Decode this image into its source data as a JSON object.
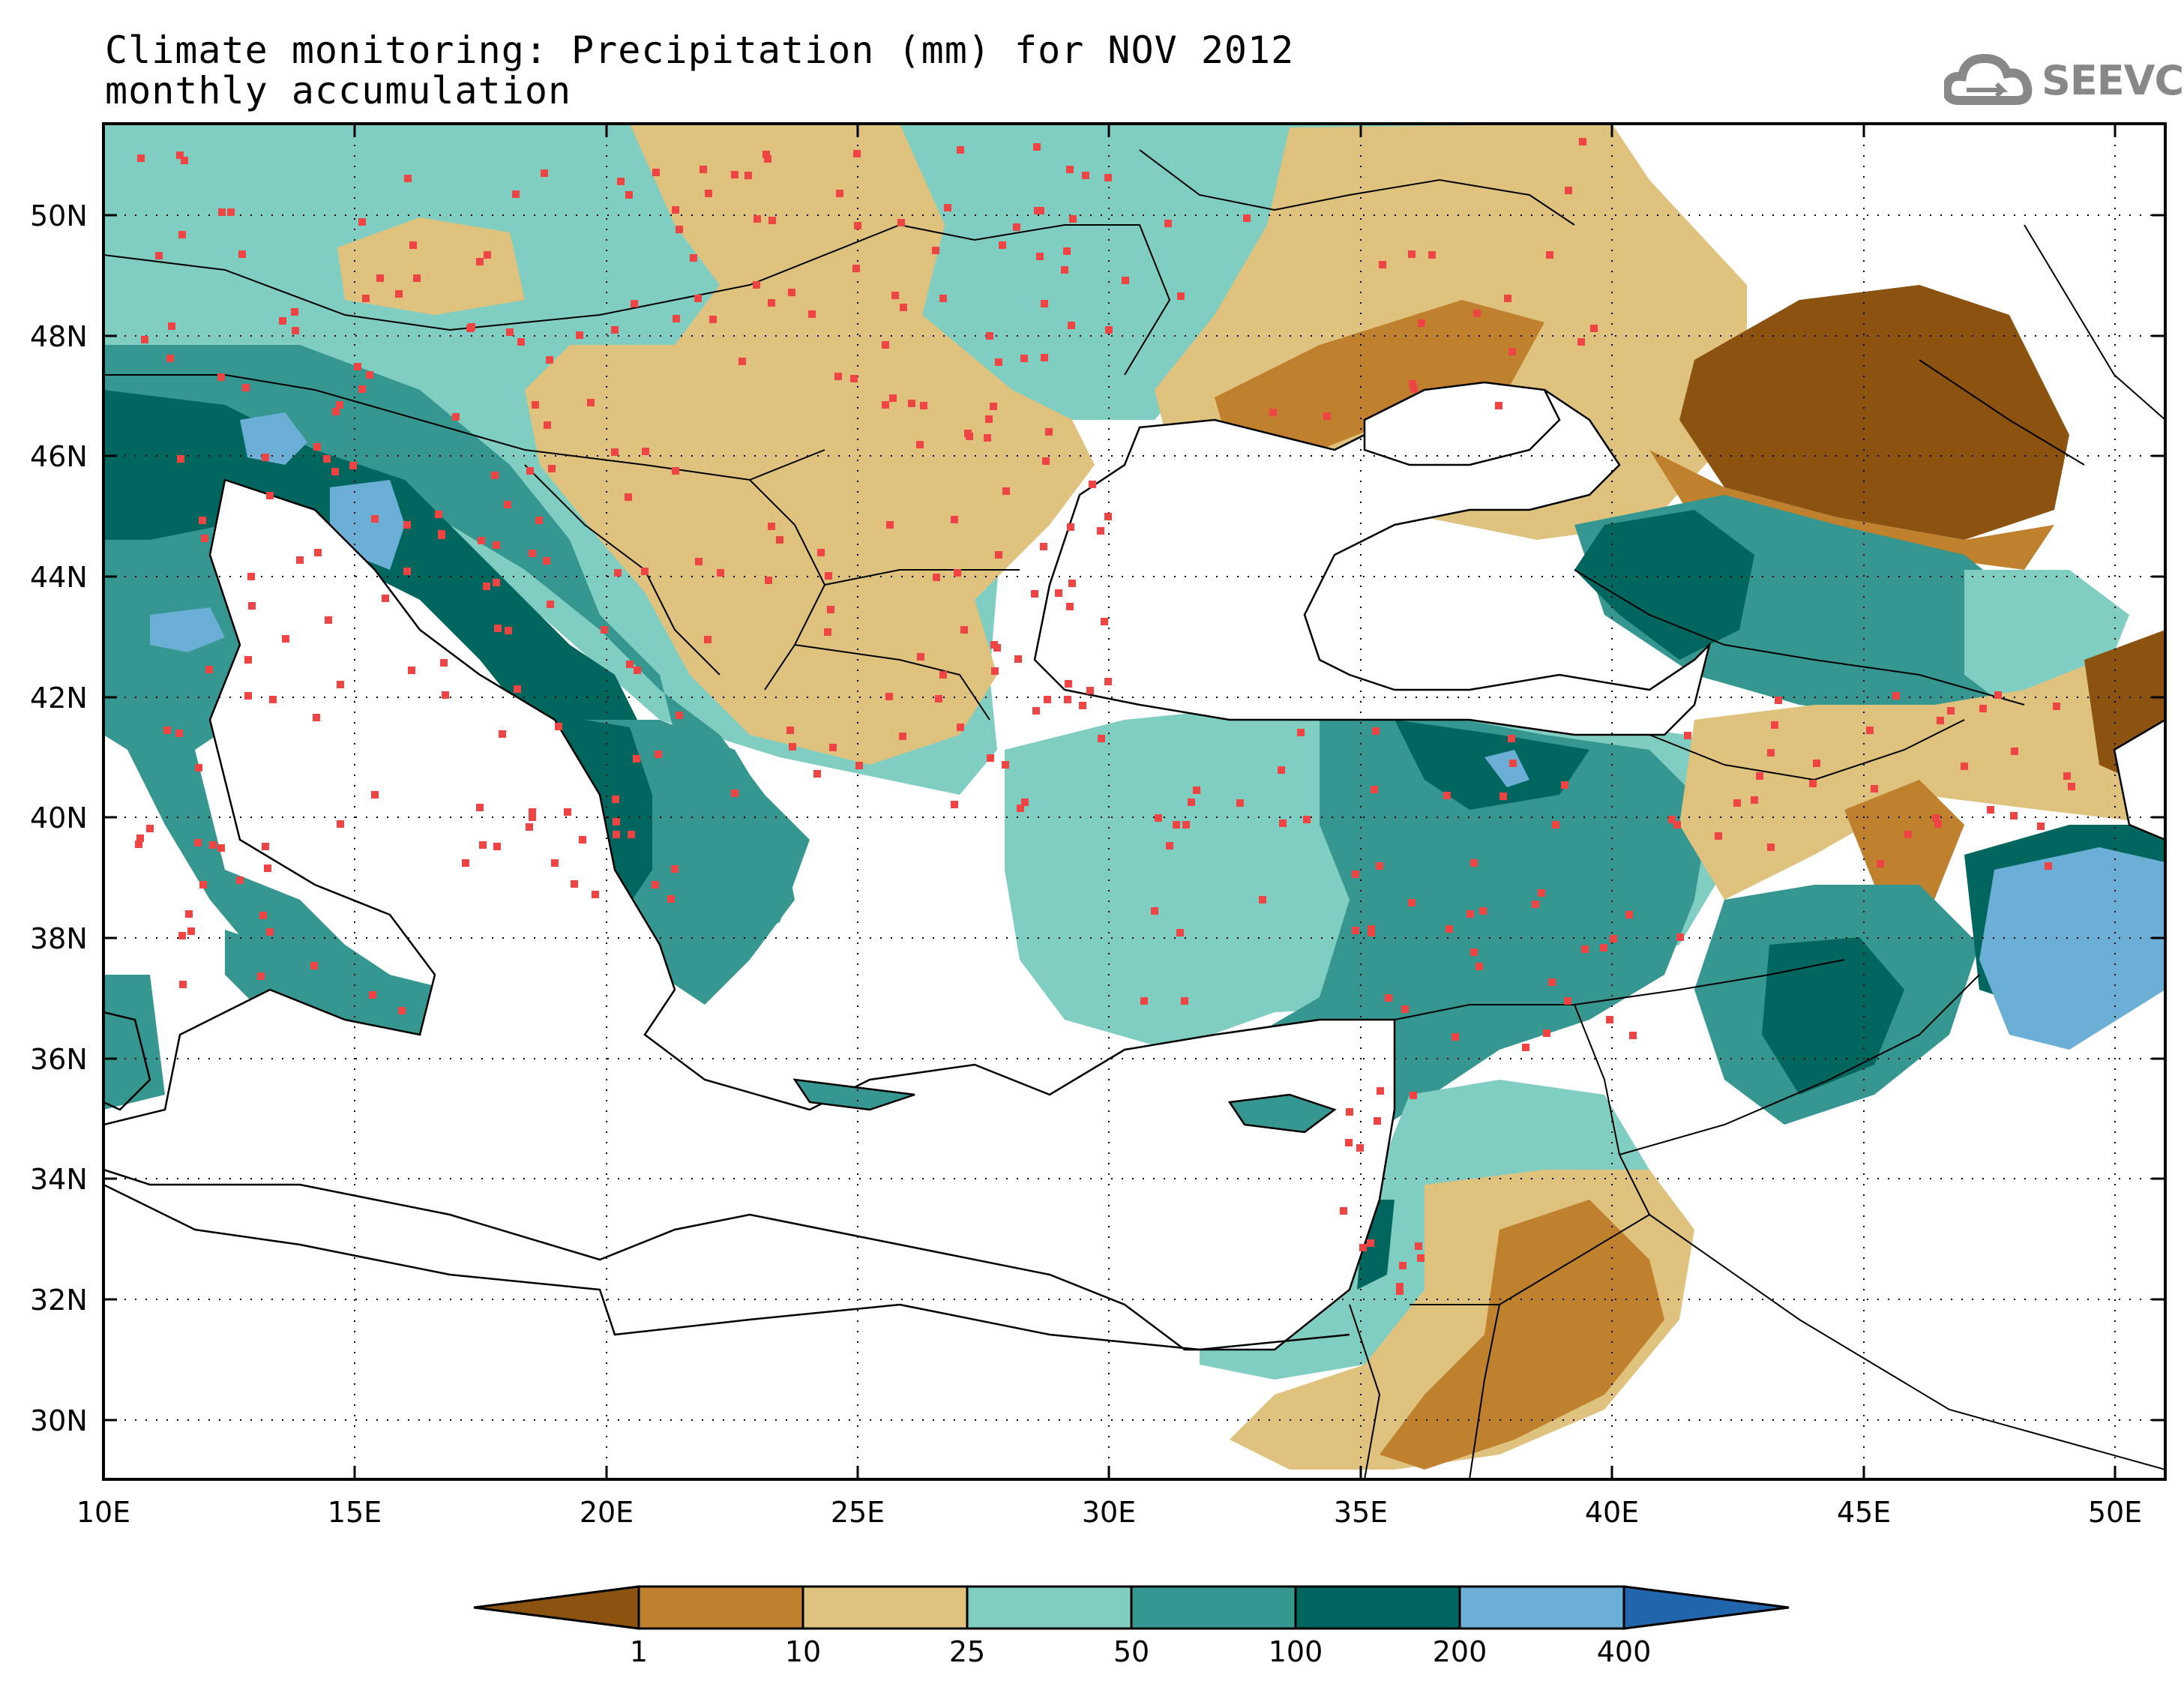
{
  "title": {
    "line1": "Climate monitoring: Precipitation (mm) for NOV 2012",
    "line2": "monthly accumulation"
  },
  "logo": {
    "text": "SEEVCCC",
    "icon": "cloud-icon"
  },
  "map": {
    "lon_range": [
      10,
      51
    ],
    "lat_range": [
      29,
      51.5
    ],
    "y_ticks": [
      "50N",
      "48N",
      "46N",
      "44N",
      "42N",
      "40N",
      "38N",
      "36N",
      "34N",
      "32N",
      "30N"
    ],
    "x_ticks": [
      "10E",
      "15E",
      "20E",
      "25E",
      "30E",
      "35E",
      "40E",
      "45E",
      "50E"
    ],
    "grid": "dotted"
  },
  "colorbar": {
    "labels": [
      "1",
      "10",
      "25",
      "50",
      "100",
      "200",
      "400"
    ],
    "colors": {
      "below_1": "#8c5310",
      "1_10": "#bf812d",
      "10_25": "#dfc27d",
      "25_50": "#80cdc1",
      "50_100": "#35978f",
      "100_200": "#01665e",
      "200_400": "#6baed6",
      "above_400": "#2166ac"
    }
  },
  "station_color": "#ee4444"
}
